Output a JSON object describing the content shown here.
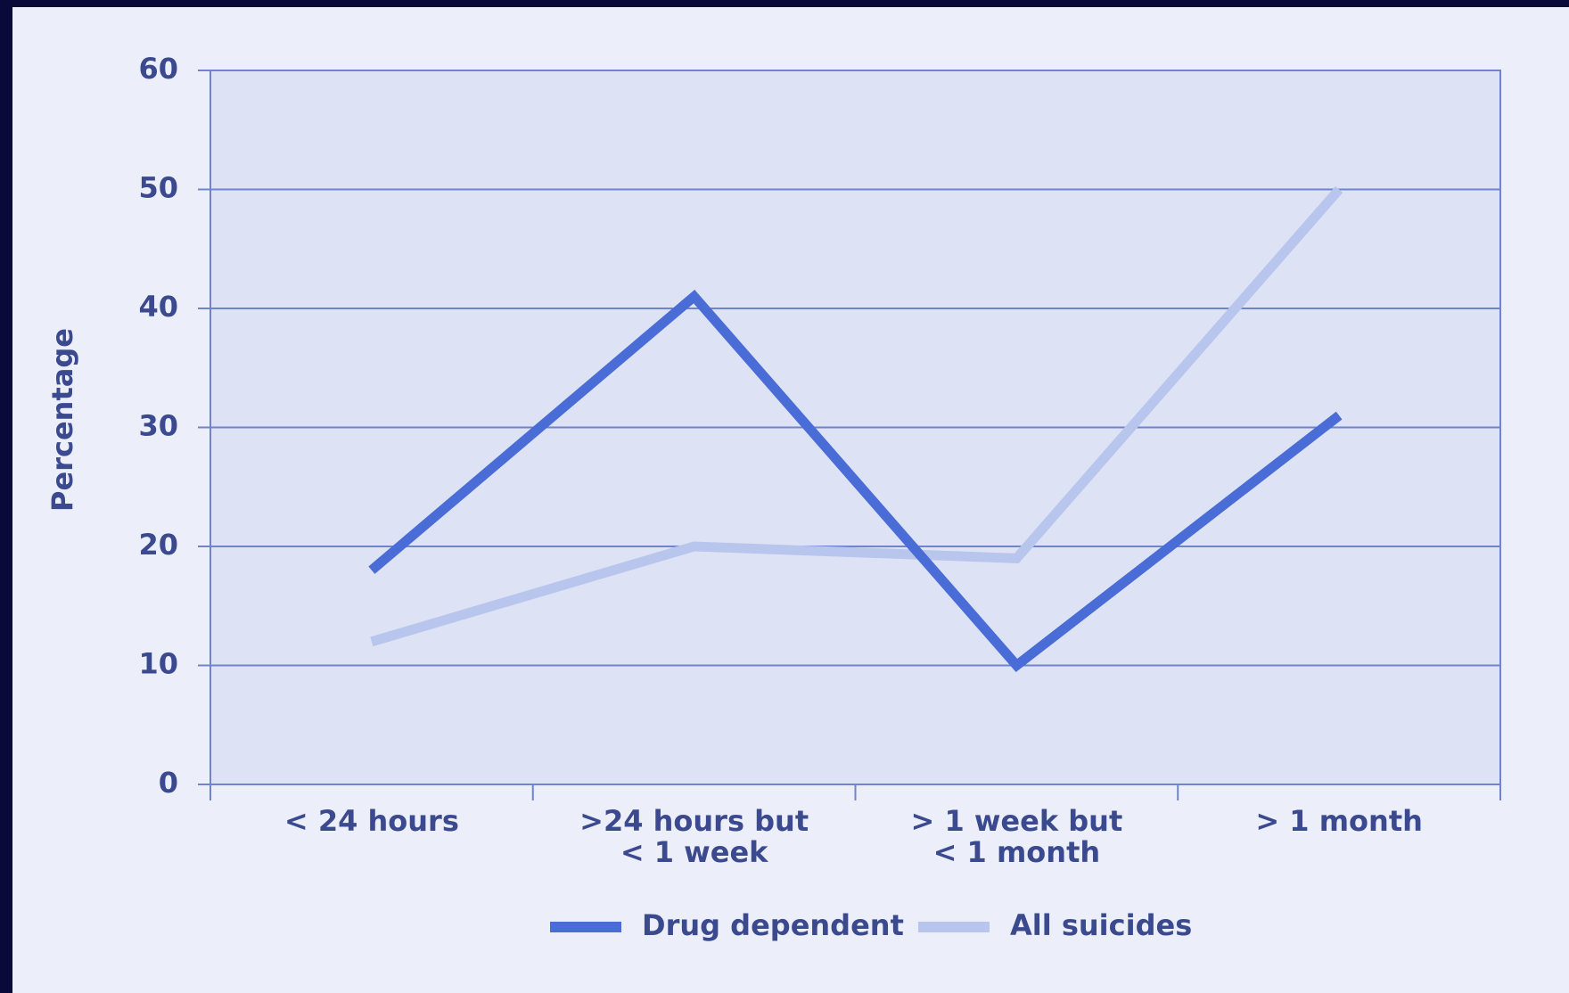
{
  "chart_data": {
    "type": "line",
    "y_label": "Percentage",
    "categories": [
      "< 24 hours",
      ">24 hours but\n< 1 week",
      "> 1 week but\n< 1 month",
      "> 1 month"
    ],
    "series": [
      {
        "name": "Drug dependent",
        "color": "#4a6cd6",
        "values": [
          18,
          41,
          10,
          31
        ]
      },
      {
        "name": "All suicides",
        "color": "#b8c6ee",
        "values": [
          12,
          20,
          19,
          50
        ]
      }
    ],
    "ylim": [
      0,
      60
    ],
    "yticks": [
      0,
      10,
      20,
      30,
      40,
      50,
      60
    ],
    "grid": true,
    "legend": "bottom"
  }
}
